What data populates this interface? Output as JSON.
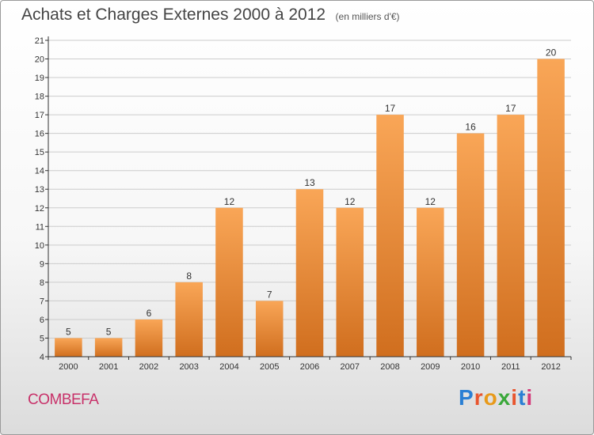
{
  "header": {
    "title": "Achats et Charges Externes 2000 à 2012",
    "unit": "(en milliers d'€)"
  },
  "footer": {
    "commune": "COMBEFA",
    "logo_text": "Proxiti",
    "logo_colors": [
      "#2a7fd4",
      "#e8552e",
      "#e89a1a",
      "#3aa83a",
      "#e8552e",
      "#2a7fd4",
      "#d43a7a"
    ]
  },
  "colors": {
    "bar_light": "#f9a657",
    "bar_dark": "#d06e1e",
    "grid": "#cccccc",
    "axis": "#333333",
    "label": "#333333"
  },
  "chart_data": {
    "type": "bar",
    "title": "Achats et Charges Externes 2000 à 2012",
    "subtitle": "(en milliers d'€)",
    "categories": [
      "2000",
      "2001",
      "2002",
      "2003",
      "2004",
      "2005",
      "2006",
      "2007",
      "2008",
      "2009",
      "2010",
      "2011",
      "2012"
    ],
    "values": [
      5,
      5,
      6,
      8,
      12,
      7,
      13,
      12,
      17,
      12,
      16,
      17,
      20
    ],
    "data_labels": [
      "5",
      "5",
      "6",
      "8",
      "12",
      "7",
      "13",
      "12",
      "17",
      "12",
      "16",
      "17",
      "20"
    ],
    "ylim": [
      4,
      21
    ],
    "yticks": [
      "4",
      "5",
      "6",
      "7",
      "8",
      "9",
      "10",
      "11",
      "12",
      "13",
      "14",
      "15",
      "16",
      "17",
      "18",
      "19",
      "20",
      "21"
    ],
    "grid": true,
    "xlabel": "",
    "ylabel": ""
  }
}
